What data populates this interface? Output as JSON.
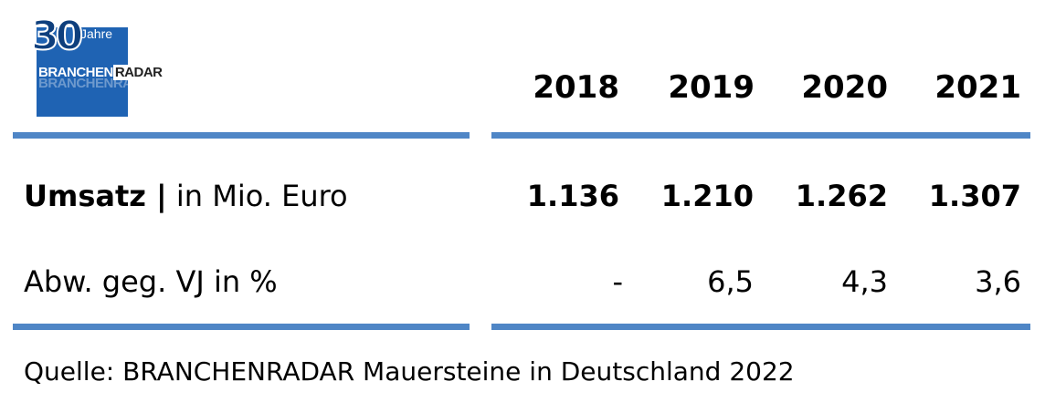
{
  "logo": {
    "number": "30",
    "suffix": "Jahre",
    "brand_main": "BRANCHEN",
    "brand_accent": "RADAR",
    "brand_ghost": "BRANCHENRADAR",
    "color": "#1f63b3"
  },
  "chart_data": {
    "type": "table",
    "columns": [
      "2018",
      "2019",
      "2020",
      "2021"
    ],
    "rows": [
      {
        "label_bold": "Umsatz |",
        "label_rest": " in Mio. Euro",
        "values": [
          "1.136",
          "1.210",
          "1.262",
          "1.307"
        ],
        "bold": true
      },
      {
        "label_bold": "",
        "label_rest": "Abw. geg. VJ in %",
        "values": [
          "-",
          "6,5",
          "4,3",
          "3,6"
        ],
        "bold": false
      }
    ],
    "rule_color": "#4f86c6"
  },
  "source": "Quelle: BRANCHENRADAR Mauersteine in Deutschland 2022"
}
